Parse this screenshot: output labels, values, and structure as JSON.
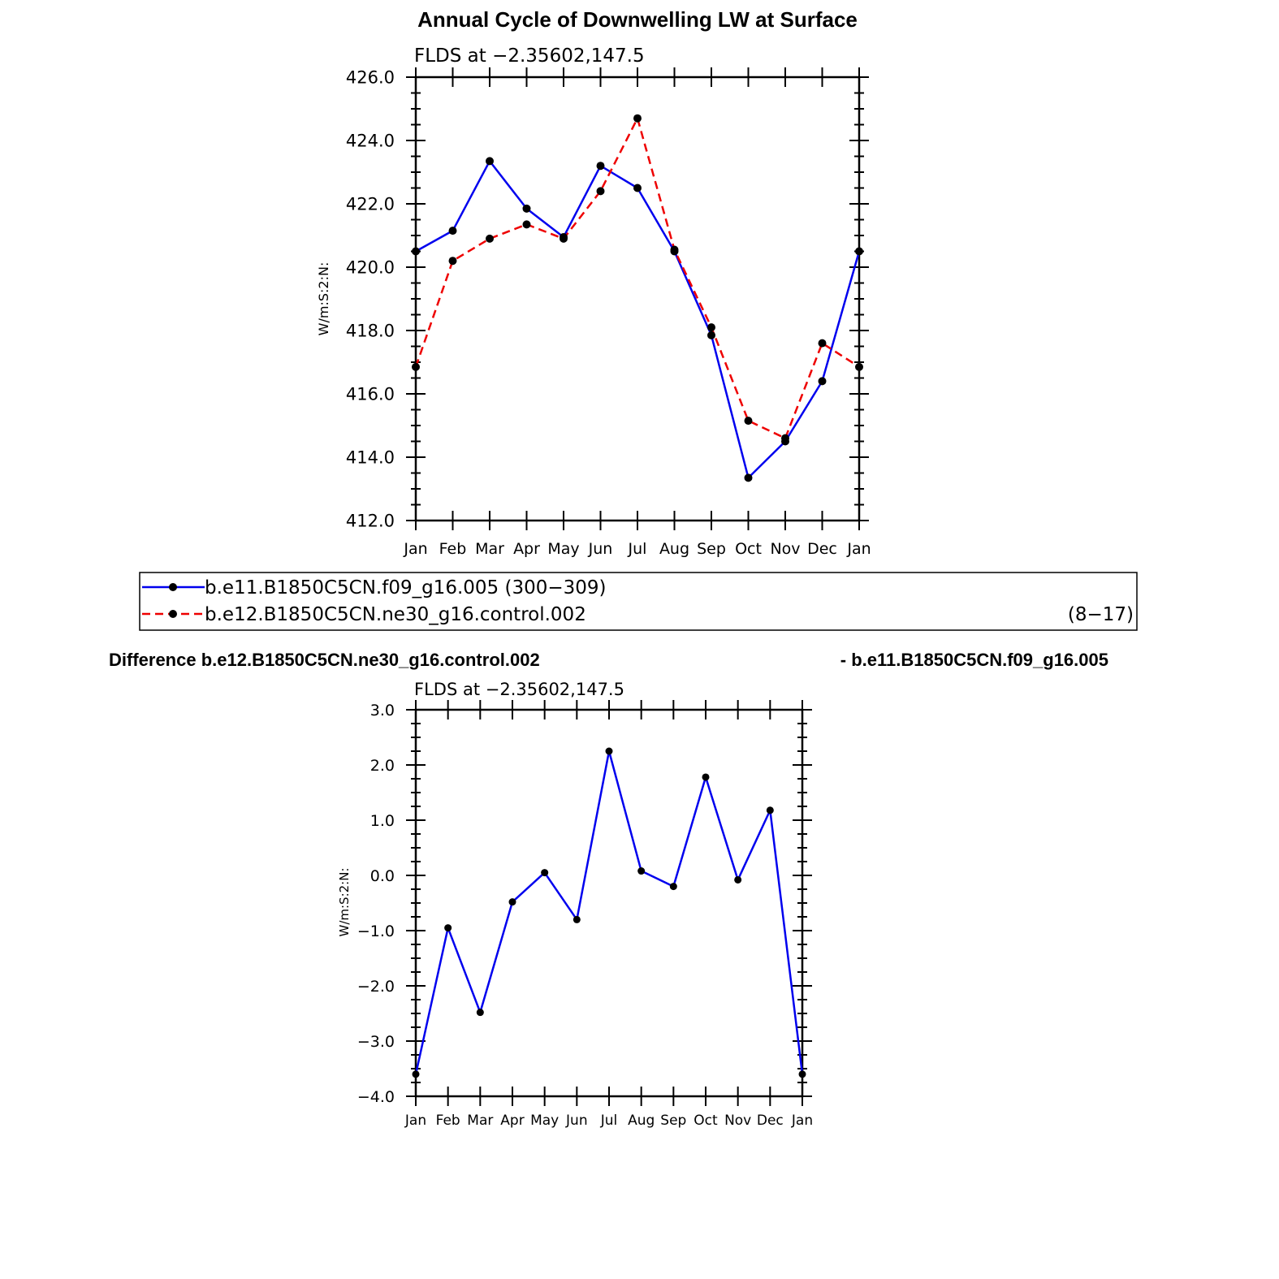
{
  "page": {
    "title": "Annual Cycle of Downwelling LW at Surface",
    "diff_title_left": "Difference b.e12.B1850C5CN.ne30_g16.control.002",
    "diff_title_right": "- b.e11.B1850C5CN.f09_g16.005"
  },
  "legend": {
    "entries": [
      {
        "label": "b.e11.B1850C5CN.f09_g16.005 (300−309)",
        "right": "",
        "color": "#0000ee",
        "dash": "solid"
      },
      {
        "label": "b.e12.B1850C5CN.ne30_g16.control.002",
        "right": "(8−17)",
        "color": "#ee0000",
        "dash": "dashed"
      }
    ]
  },
  "chart_data": [
    {
      "type": "line",
      "subtitle": "FLDS at −2.35602,147.5",
      "ylabel": "W/m:S:2:N:",
      "categories": [
        "Jan",
        "Feb",
        "Mar",
        "Apr",
        "May",
        "Jun",
        "Jul",
        "Aug",
        "Sep",
        "Oct",
        "Nov",
        "Dec",
        "Jan"
      ],
      "ylim": [
        412,
        426
      ],
      "yticks": [
        {
          "v": 412,
          "label": "412.0"
        },
        {
          "v": 414,
          "label": "414.0"
        },
        {
          "v": 416,
          "label": "416.0"
        },
        {
          "v": 418,
          "label": "418.0"
        },
        {
          "v": 420,
          "label": "420.0"
        },
        {
          "v": 422,
          "label": "422.0"
        },
        {
          "v": 424,
          "label": "424.0"
        },
        {
          "v": 426,
          "label": "426.0"
        }
      ],
      "series": [
        {
          "legend_index": 0,
          "color": "#0000ee",
          "dash": "solid",
          "values": [
            420.5,
            421.15,
            423.35,
            421.85,
            420.95,
            423.2,
            422.5,
            420.5,
            417.85,
            413.35,
            414.5,
            416.4,
            420.5
          ]
        },
        {
          "legend_index": 1,
          "color": "#ee0000",
          "dash": "dashed",
          "values": [
            416.85,
            420.2,
            420.9,
            421.35,
            420.9,
            422.4,
            424.7,
            420.55,
            418.1,
            415.15,
            414.6,
            417.6,
            416.85
          ]
        }
      ]
    },
    {
      "type": "line",
      "subtitle": "FLDS at −2.35602,147.5",
      "ylabel": "W/m:S:2:N:",
      "categories": [
        "Jan",
        "Feb",
        "Mar",
        "Apr",
        "May",
        "Jun",
        "Jul",
        "Aug",
        "Sep",
        "Oct",
        "Nov",
        "Dec",
        "Jan"
      ],
      "ylim": [
        -4,
        3
      ],
      "yticks": [
        {
          "v": -4,
          "label": "−4.0"
        },
        {
          "v": -3,
          "label": "−3.0"
        },
        {
          "v": -2,
          "label": "−2.0"
        },
        {
          "v": -1,
          "label": "−1.0"
        },
        {
          "v": 0,
          "label": "0.0"
        },
        {
          "v": 1,
          "label": "1.0"
        },
        {
          "v": 2,
          "label": "2.0"
        },
        {
          "v": 3,
          "label": "3.0"
        }
      ],
      "series": [
        {
          "color": "#0000ee",
          "dash": "solid",
          "values": [
            -3.6,
            -0.95,
            -2.48,
            -0.48,
            0.05,
            -0.8,
            2.25,
            0.08,
            -0.2,
            1.78,
            -0.08,
            1.18,
            -3.6
          ]
        }
      ]
    }
  ]
}
